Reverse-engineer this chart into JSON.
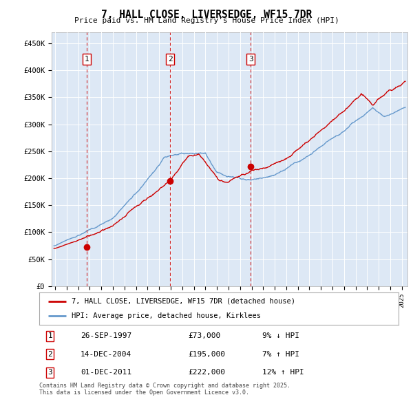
{
  "title": "7, HALL CLOSE, LIVERSEDGE, WF15 7DR",
  "subtitle": "Price paid vs. HM Land Registry's House Price Index (HPI)",
  "ylabel_ticks": [
    "£0",
    "£50K",
    "£100K",
    "£150K",
    "£200K",
    "£250K",
    "£300K",
    "£350K",
    "£400K",
    "£450K"
  ],
  "ytick_values": [
    0,
    50000,
    100000,
    150000,
    200000,
    250000,
    300000,
    350000,
    400000,
    450000
  ],
  "ylim": [
    0,
    470000
  ],
  "xlim_start": 1994.7,
  "xlim_end": 2025.5,
  "background_color": "#dde8f5",
  "grid_color": "#ffffff",
  "red_line_color": "#cc0000",
  "blue_line_color": "#6699cc",
  "dashed_line_color": "#cc0000",
  "purchases": [
    {
      "label": "1",
      "date_x": 1997.74,
      "price": 73000,
      "pct": "9%",
      "dir": "↓",
      "date_str": "26-SEP-1997",
      "price_str": "£73,000"
    },
    {
      "label": "2",
      "date_x": 2004.96,
      "price": 195000,
      "pct": "7%",
      "dir": "↑",
      "date_str": "14-DEC-2004",
      "price_str": "£195,000"
    },
    {
      "label": "3",
      "date_x": 2011.92,
      "price": 222000,
      "pct": "12%",
      "dir": "↑",
      "date_str": "01-DEC-2011",
      "price_str": "£222,000"
    }
  ],
  "legend_line1": "7, HALL CLOSE, LIVERSEDGE, WF15 7DR (detached house)",
  "legend_line2": "HPI: Average price, detached house, Kirklees",
  "footnote1": "Contains HM Land Registry data © Crown copyright and database right 2025.",
  "footnote2": "This data is licensed under the Open Government Licence v3.0."
}
